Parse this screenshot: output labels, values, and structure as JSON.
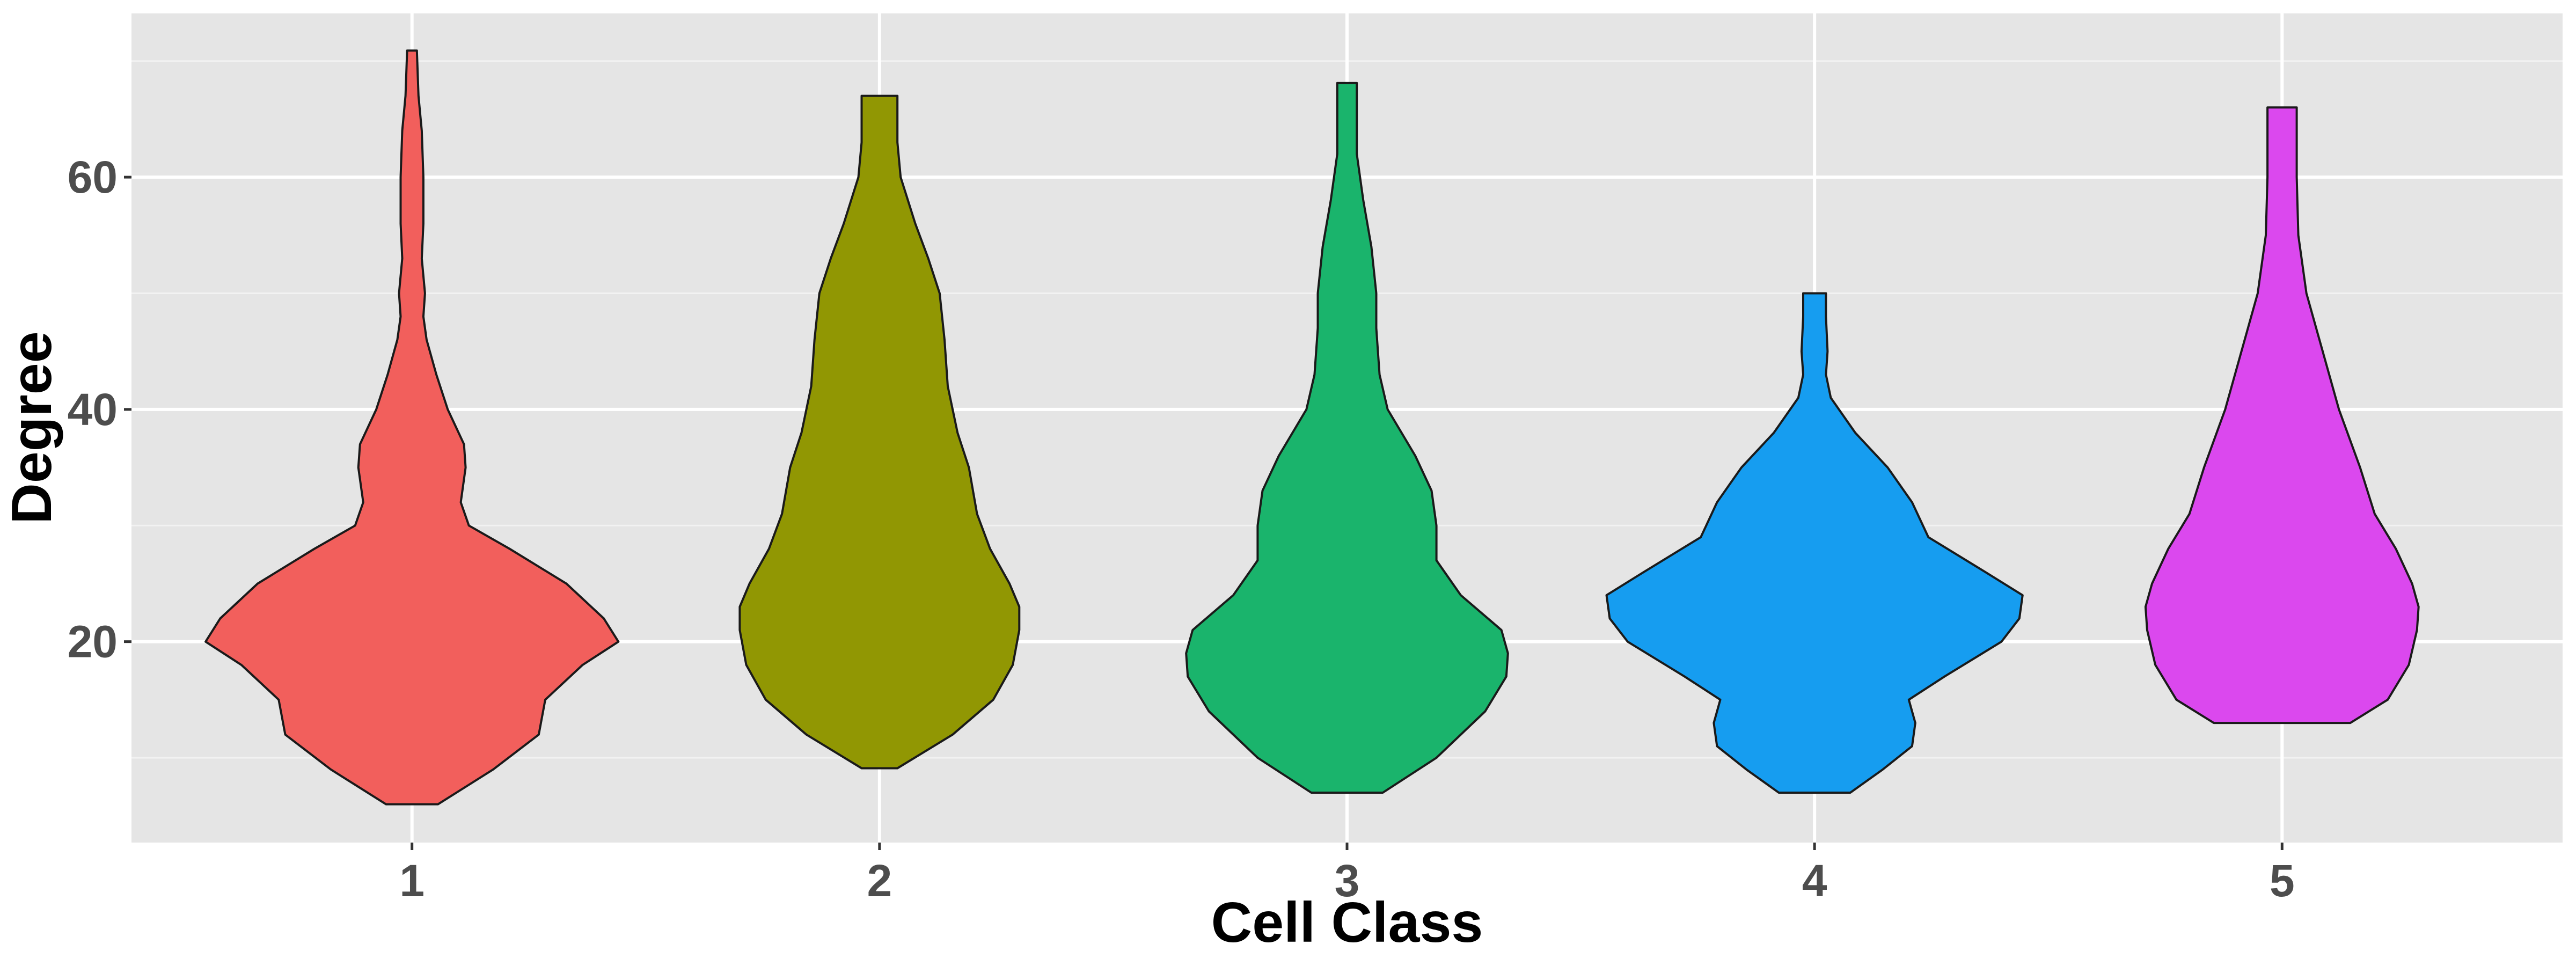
{
  "chart_data": {
    "type": "violin",
    "x_label": "Cell Class",
    "y_label": "Degree",
    "xlim": [
      0.4,
      5.6
    ],
    "xticks": [
      1,
      2,
      3,
      4,
      5
    ],
    "ylim": [
      2.7,
      74.1
    ],
    "yticks": [
      20,
      40,
      60
    ],
    "minor_yticks": [
      10,
      30,
      50,
      70
    ],
    "grid": true,
    "violins": [
      {
        "x": 1,
        "color": "#f25f5c",
        "y": [
          6,
          9,
          12,
          15,
          18,
          20,
          22,
          25,
          28,
          30,
          32,
          35,
          37,
          40,
          43,
          46,
          48,
          50,
          53,
          56,
          60,
          64,
          67,
          70.9
        ],
        "density": [
          16,
          50,
          78,
          82,
          105,
          127,
          118,
          95,
          60,
          35,
          30,
          33,
          32,
          22,
          15,
          9,
          7,
          8,
          6,
          7,
          7,
          6,
          4,
          3
        ]
      },
      {
        "x": 2,
        "color": "#919703",
        "y": [
          9.1,
          12,
          15,
          18,
          21,
          23,
          25,
          28,
          31,
          35,
          38,
          42,
          46,
          50,
          53,
          56,
          60,
          63,
          67
        ],
        "density": [
          11,
          45,
          70,
          82,
          86,
          86,
          80,
          68,
          60,
          55,
          48,
          42,
          40,
          37,
          30,
          22,
          13,
          11,
          11
        ]
      },
      {
        "x": 3,
        "color": "#1ab46c",
        "y": [
          7,
          10,
          14,
          17,
          19,
          21,
          24,
          27,
          30,
          33,
          36,
          40,
          43,
          47,
          50,
          54,
          58,
          62,
          66,
          68.1
        ],
        "density": [
          22,
          55,
          85,
          98,
          99,
          95,
          70,
          55,
          55,
          52,
          42,
          25,
          20,
          18,
          18,
          15,
          10,
          6,
          6,
          6
        ]
      },
      {
        "x": 4,
        "color": "#169df0",
        "y": [
          7,
          9,
          11,
          13,
          15,
          17,
          20,
          22,
          24,
          26,
          29,
          32,
          35,
          38,
          41,
          43,
          45,
          48,
          50
        ],
        "density": [
          22,
          42,
          60,
          62,
          58,
          80,
          115,
          126,
          128,
          105,
          70,
          60,
          45,
          25,
          10,
          7,
          8,
          7,
          7
        ]
      },
      {
        "x": 5,
        "color": "#db48ee",
        "y": [
          13,
          15,
          18,
          21,
          23,
          25,
          28,
          31,
          35,
          40,
          45,
          50,
          55,
          60,
          63,
          66
        ],
        "density": [
          42,
          65,
          78,
          83,
          84,
          80,
          70,
          57,
          48,
          35,
          25,
          15,
          10,
          9,
          9,
          9
        ]
      }
    ]
  }
}
